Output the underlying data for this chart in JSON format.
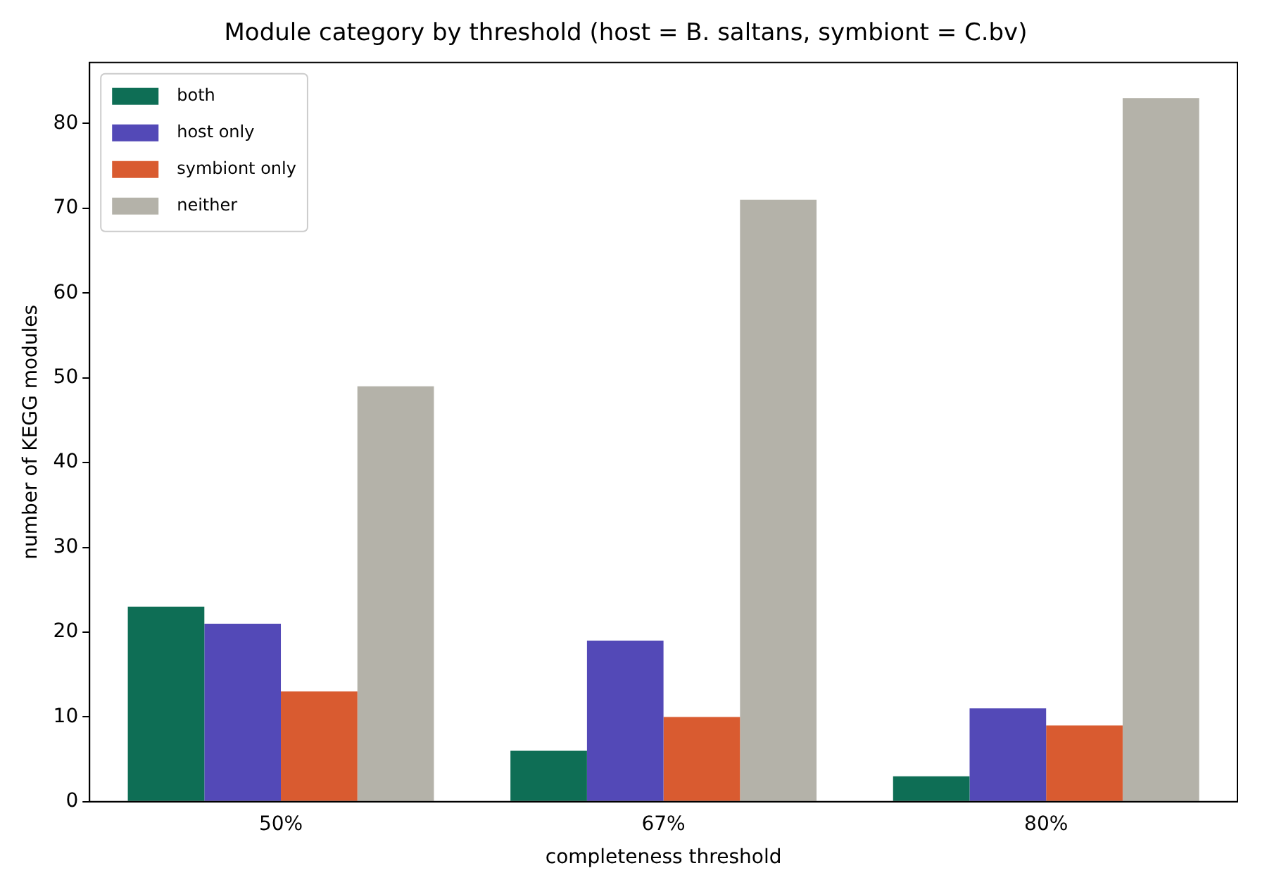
{
  "chart_data": {
    "type": "bar",
    "title": "Module category by threshold (host = B. saltans, symbiont = C.bv)",
    "xlabel": "completeness threshold",
    "ylabel": "number of KEGG modules",
    "categories": [
      "50%",
      "67%",
      "80%"
    ],
    "series": [
      {
        "name": "both",
        "color": "#0e6e55",
        "values": [
          23,
          6,
          3
        ]
      },
      {
        "name": "host only",
        "color": "#5349b7",
        "values": [
          21,
          19,
          11
        ]
      },
      {
        "name": "symbiont only",
        "color": "#d95b30",
        "values": [
          13,
          10,
          9
        ]
      },
      {
        "name": "neither",
        "color": "#b4b2a9",
        "values": [
          49,
          71,
          83
        ]
      }
    ],
    "ylim": [
      0,
      87.2
    ],
    "yticks": [
      0,
      10,
      20,
      30,
      40,
      50,
      60,
      70,
      80
    ],
    "grid": false,
    "legend": "top left"
  }
}
